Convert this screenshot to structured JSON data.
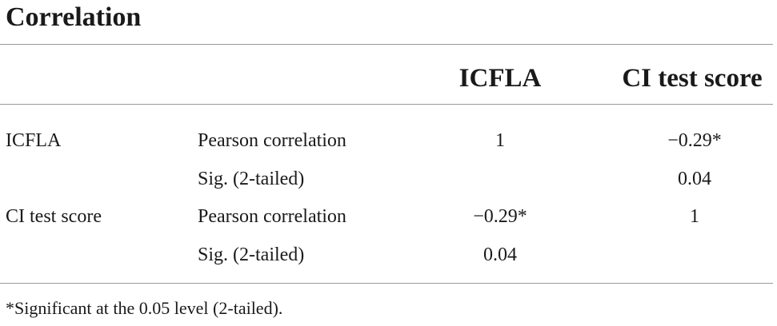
{
  "title": "Correlation",
  "columns": [
    "ICFLA",
    "CI test score"
  ],
  "rows": [
    {
      "variable": "ICFLA",
      "stats": [
        {
          "label": "Pearson correlation",
          "values": [
            "1",
            "−0.29*"
          ]
        },
        {
          "label": "Sig. (2-tailed)",
          "values": [
            "",
            "0.04"
          ]
        }
      ]
    },
    {
      "variable": "CI test score",
      "stats": [
        {
          "label": "Pearson correlation",
          "values": [
            "−0.29*",
            "1"
          ]
        },
        {
          "label": "Sig. (2-tailed)",
          "values": [
            "0.04",
            ""
          ]
        }
      ]
    }
  ],
  "footnote": "*Significant at the 0.05 level (2-tailed)."
}
